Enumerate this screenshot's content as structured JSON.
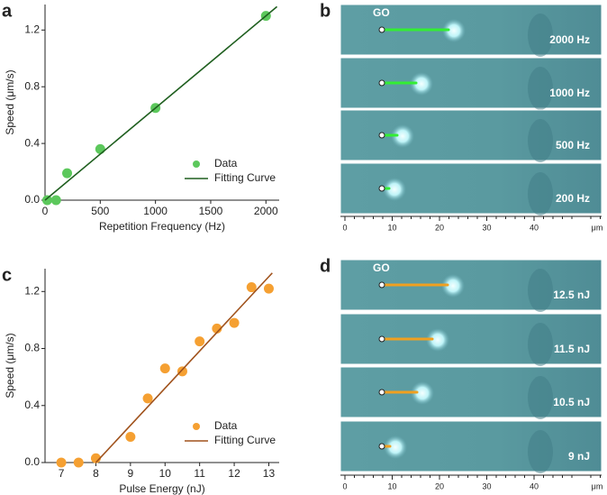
{
  "chart_data": [
    {
      "type": "scatter",
      "panel_label": "a",
      "xlabel": "Repetition Frequency (Hz)",
      "ylabel": "Speed (μm/s)",
      "xlim": [
        0,
        2120
      ],
      "ylim": [
        0,
        1.38
      ],
      "xticks": [
        0,
        500,
        1000,
        1500,
        2000
      ],
      "yticks": [
        {
          "value": 0,
          "label": "0.0"
        },
        0.4,
        0.8,
        1.2
      ],
      "legend": "lower right",
      "series": [
        {
          "name": "Data",
          "mode": "markers",
          "color": "#5cc85c",
          "x": [
            20,
            100,
            200,
            500,
            1000,
            2000
          ],
          "values": [
            0.0,
            0.0,
            0.19,
            0.36,
            0.65,
            1.3
          ]
        },
        {
          "name": "Fitting Curve",
          "mode": "line",
          "color": "#1f5f1f",
          "x": [
            0,
            2100
          ],
          "values": [
            0,
            1.365
          ]
        }
      ]
    },
    {
      "type": "scatter",
      "panel_label": "c",
      "xlabel": "Pulse Energy (nJ)",
      "ylabel": "Speed (μm/s)",
      "xlim": [
        6.53,
        13.3
      ],
      "ylim": [
        0,
        1.36
      ],
      "xticks": [
        7,
        8,
        9,
        10,
        11,
        12,
        13
      ],
      "yticks": [
        {
          "value": 0,
          "label": "0.0"
        },
        0.4,
        0.8,
        1.2
      ],
      "legend": "lower right",
      "series": [
        {
          "name": "Data",
          "mode": "markers",
          "color": "#f5a032",
          "x": [
            7,
            7.5,
            8,
            9,
            9.5,
            10,
            10.5,
            11,
            11.5,
            12,
            12.5,
            13
          ],
          "values": [
            0.0,
            0.0,
            0.03,
            0.18,
            0.45,
            0.66,
            0.64,
            0.85,
            0.94,
            0.98,
            1.23,
            1.22
          ]
        },
        {
          "name": "Fitting Curve",
          "mode": "line",
          "color": "#a0521c",
          "x": [
            8,
            13.1
          ],
          "values": [
            0,
            1.33
          ]
        }
      ]
    }
  ],
  "micrographs": [
    {
      "panel_label": "b",
      "tag": "GO",
      "frames": [
        "2000 Hz",
        "1000 Hz",
        "500 Hz",
        "200 Hz"
      ],
      "scale_ticks": [
        0,
        10,
        20,
        30,
        40
      ],
      "scale_unit": "μm"
    },
    {
      "panel_label": "d",
      "tag": "GO",
      "frames": [
        "12.5 nJ",
        "11.5 nJ",
        "10.5 nJ",
        "9 nJ"
      ],
      "scale_ticks": [
        0,
        10,
        20,
        30,
        40
      ],
      "scale_unit": "μm"
    }
  ]
}
